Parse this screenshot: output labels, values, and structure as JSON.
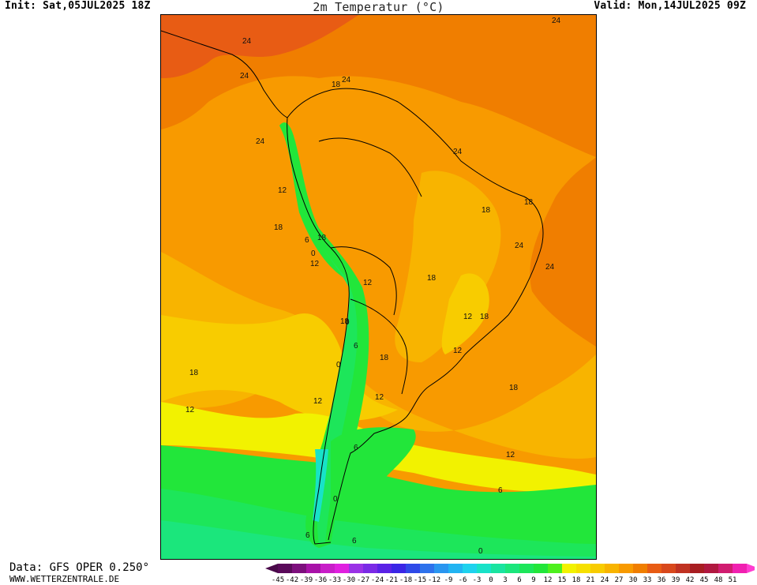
{
  "header": {
    "init": "Init: Sat,05JUL2025 18Z",
    "title": "2m Temperatur (°C)",
    "valid": "Valid: Mon,14JUL2025 09Z"
  },
  "footer": {
    "data_source": "Data: GFS OPER 0.250°",
    "site": "WWW.WETTERZENTRALE.DE"
  },
  "legend": {
    "ticks": [
      "-45",
      "-42",
      "-39",
      "-36",
      "-33",
      "-30",
      "-27",
      "-24",
      "-21",
      "-18",
      "-15",
      "-12",
      "-9",
      "-6",
      "-3",
      "0",
      "3",
      "6",
      "9",
      "12",
      "15",
      "18",
      "21",
      "24",
      "27",
      "30",
      "33",
      "36",
      "39",
      "42",
      "45",
      "48",
      "51"
    ],
    "colors": [
      "#5a0a5a",
      "#7d0f7d",
      "#a812a8",
      "#c81ec8",
      "#e020e0",
      "#9a32e6",
      "#7a2ae6",
      "#5a22e6",
      "#3a26e6",
      "#2f4ae8",
      "#2e72ec",
      "#2a96f0",
      "#22b4f2",
      "#1ed2ee",
      "#18e2c8",
      "#19e4a0",
      "#1be67c",
      "#1de65a",
      "#22e63a",
      "#4ef01e",
      "#f2f200",
      "#f6e000",
      "#f8cc00",
      "#f8b400",
      "#f89a00",
      "#f07e00",
      "#e85c14",
      "#d8481c",
      "#c03222",
      "#a81e22",
      "#b01840",
      "#d01c70",
      "#f020b0"
    ],
    "arrow_left_color": "#4a0a4a",
    "arrow_right_color": "#ff3cd0"
  },
  "map": {
    "contour_labels": [
      {
        "text": "24"
      },
      {
        "text": "24"
      },
      {
        "text": "18"
      },
      {
        "text": "24"
      },
      {
        "text": "24"
      },
      {
        "text": "24"
      },
      {
        "text": "24"
      },
      {
        "text": "12"
      },
      {
        "text": "18"
      },
      {
        "text": "18"
      },
      {
        "text": "6"
      },
      {
        "text": "0"
      },
      {
        "text": "12"
      },
      {
        "text": "18"
      },
      {
        "text": "18"
      },
      {
        "text": "24"
      },
      {
        "text": "24"
      },
      {
        "text": "12"
      },
      {
        "text": "18"
      },
      {
        "text": "18"
      },
      {
        "text": "12"
      },
      {
        "text": "18"
      },
      {
        "text": "12"
      },
      {
        "text": "0"
      },
      {
        "text": "6"
      },
      {
        "text": "0"
      },
      {
        "text": "18"
      },
      {
        "text": "12"
      },
      {
        "text": "18"
      },
      {
        "text": "18"
      },
      {
        "text": "12"
      },
      {
        "text": "12"
      },
      {
        "text": "6"
      },
      {
        "text": "12"
      },
      {
        "text": "6"
      },
      {
        "text": "0"
      },
      {
        "text": "6"
      },
      {
        "text": "6"
      },
      {
        "text": "0"
      }
    ]
  }
}
